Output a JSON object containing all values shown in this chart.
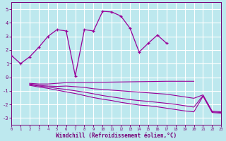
{
  "xlabel": "Windchill (Refroidissement éolien,°C)",
  "bg_color": "#bde8ee",
  "grid_color": "#ffffff",
  "line_color": "#990099",
  "ylim": [
    -3.5,
    5.5
  ],
  "xlim": [
    0,
    23
  ],
  "yticks": [
    -3,
    -2,
    -1,
    0,
    1,
    2,
    3,
    4,
    5
  ],
  "xticks": [
    0,
    1,
    2,
    3,
    4,
    5,
    6,
    7,
    8,
    9,
    10,
    11,
    12,
    13,
    14,
    15,
    16,
    17,
    18,
    19,
    20,
    21,
    22,
    23
  ],
  "series": [
    {
      "x": [
        0,
        1,
        2,
        3,
        4,
        5,
        6,
        7,
        8,
        9,
        10,
        11,
        12,
        13,
        14,
        15,
        16,
        17
      ],
      "y": [
        1.6,
        1.0,
        1.5,
        2.2,
        3.0,
        3.5,
        3.4,
        0.1,
        3.5,
        3.4,
        4.85,
        4.8,
        4.5,
        3.6,
        1.85,
        2.5,
        3.1,
        2.5
      ],
      "marker": true
    },
    {
      "x": [
        2,
        3,
        4,
        5,
        6,
        7,
        8,
        9,
        10,
        11,
        12,
        13,
        14,
        15,
        16,
        17,
        18,
        19,
        20
      ],
      "y": [
        -0.45,
        -0.5,
        -0.5,
        -0.45,
        -0.4,
        -0.4,
        -0.4,
        -0.38,
        -0.37,
        -0.36,
        -0.35,
        -0.34,
        -0.33,
        -0.32,
        -0.31,
        -0.3,
        -0.3,
        -0.3,
        -0.3
      ],
      "marker": false
    },
    {
      "x": [
        2,
        3,
        4,
        5,
        6,
        7,
        8,
        9,
        10,
        11,
        12,
        13,
        14,
        15,
        16,
        17,
        18,
        19,
        20,
        21,
        22,
        23
      ],
      "y": [
        -0.5,
        -0.6,
        -0.65,
        -0.68,
        -0.65,
        -0.7,
        -0.75,
        -0.85,
        -0.9,
        -0.95,
        -1.0,
        -1.05,
        -1.1,
        -1.15,
        -1.2,
        -1.25,
        -1.35,
        -1.45,
        -1.55,
        -1.3,
        -2.5,
        -2.55
      ],
      "marker": false
    },
    {
      "x": [
        2,
        3,
        4,
        5,
        6,
        7,
        8,
        9,
        10,
        11,
        12,
        13,
        14,
        15,
        16,
        17,
        18,
        19,
        20,
        21,
        22,
        23
      ],
      "y": [
        -0.55,
        -0.65,
        -0.72,
        -0.82,
        -0.9,
        -1.0,
        -1.1,
        -1.22,
        -1.35,
        -1.45,
        -1.55,
        -1.65,
        -1.72,
        -1.78,
        -1.85,
        -1.92,
        -2.0,
        -2.1,
        -2.2,
        -1.35,
        -2.55,
        -2.6
      ],
      "marker": false
    },
    {
      "x": [
        2,
        3,
        4,
        5,
        6,
        7,
        8,
        9,
        10,
        11,
        12,
        13,
        14,
        15,
        16,
        17,
        18,
        19,
        20,
        21,
        22,
        23
      ],
      "y": [
        -0.6,
        -0.72,
        -0.82,
        -0.95,
        -1.08,
        -1.2,
        -1.35,
        -1.5,
        -1.62,
        -1.72,
        -1.85,
        -1.95,
        -2.05,
        -2.1,
        -2.18,
        -2.28,
        -2.38,
        -2.48,
        -2.55,
        -1.4,
        -2.6,
        -2.65
      ],
      "marker": false
    }
  ]
}
